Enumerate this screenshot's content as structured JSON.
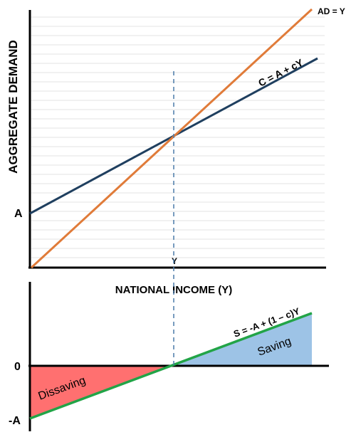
{
  "top_panel": {
    "y_axis_label": "AGGREGATE DEMAND",
    "intercept_label": "A",
    "equilibrium_label": "Y",
    "line_45_label": "AD = Y",
    "consumption_label": "C = A + cY",
    "colors": {
      "line_45": "#e07b39",
      "consumption": "#1f3f5f",
      "grid": "#e3e3e3",
      "axis": "#000000"
    }
  },
  "bottom_panel": {
    "x_axis_label": "NATIONAL INCOME (Y)",
    "zero_label": "0",
    "neg_intercept_label": "-A",
    "saving_label": "S = -A + (1 – c)Y",
    "saving_region_label": "Saving",
    "dissaving_region_label": "Dissaving",
    "colors": {
      "saving_line": "#22a447",
      "saving_fill": "#9dc3e6",
      "dissaving_fill": "#ff7070",
      "dashed_line": "#4a7aa8"
    }
  }
}
